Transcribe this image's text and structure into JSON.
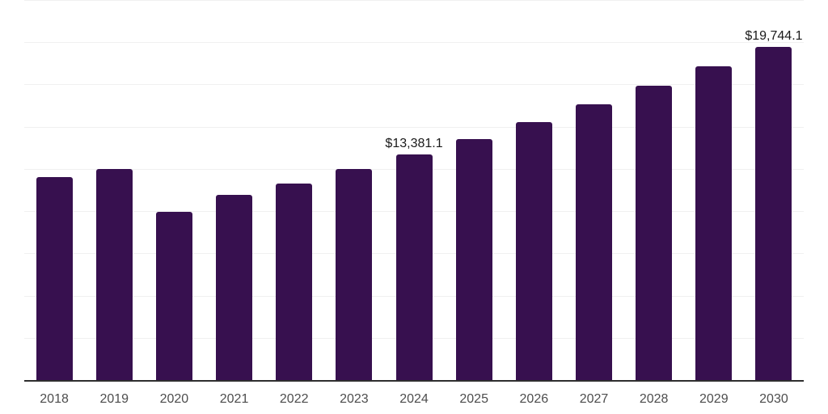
{
  "chart_data": {
    "type": "bar",
    "title": "",
    "xlabel": "",
    "ylabel": "",
    "categories": [
      "2018",
      "2019",
      "2020",
      "2021",
      "2022",
      "2023",
      "2024",
      "2025",
      "2026",
      "2027",
      "2028",
      "2029",
      "2030"
    ],
    "values": [
      12030,
      12495,
      9970,
      10960,
      11635,
      12480,
      13381.1,
      14250,
      15255,
      16310,
      17410,
      18575,
      19744.1
    ],
    "labeled_points": [
      {
        "category": "2024",
        "label": "$13,381.1"
      },
      {
        "category": "2030",
        "label": "$19,744.1"
      }
    ],
    "ylim": [
      0,
      22500
    ],
    "gridline_step": 2500,
    "grid": "on",
    "y_tick_labels_visible": false,
    "legend_position": "none",
    "colors": {
      "bar": "#37104f",
      "gridline": "#f0f0f0",
      "axis_line": "#2e2e2e",
      "data_label": "#1a1a1a",
      "tick_label": "#4d4d4d",
      "background": "#ffffff"
    }
  }
}
